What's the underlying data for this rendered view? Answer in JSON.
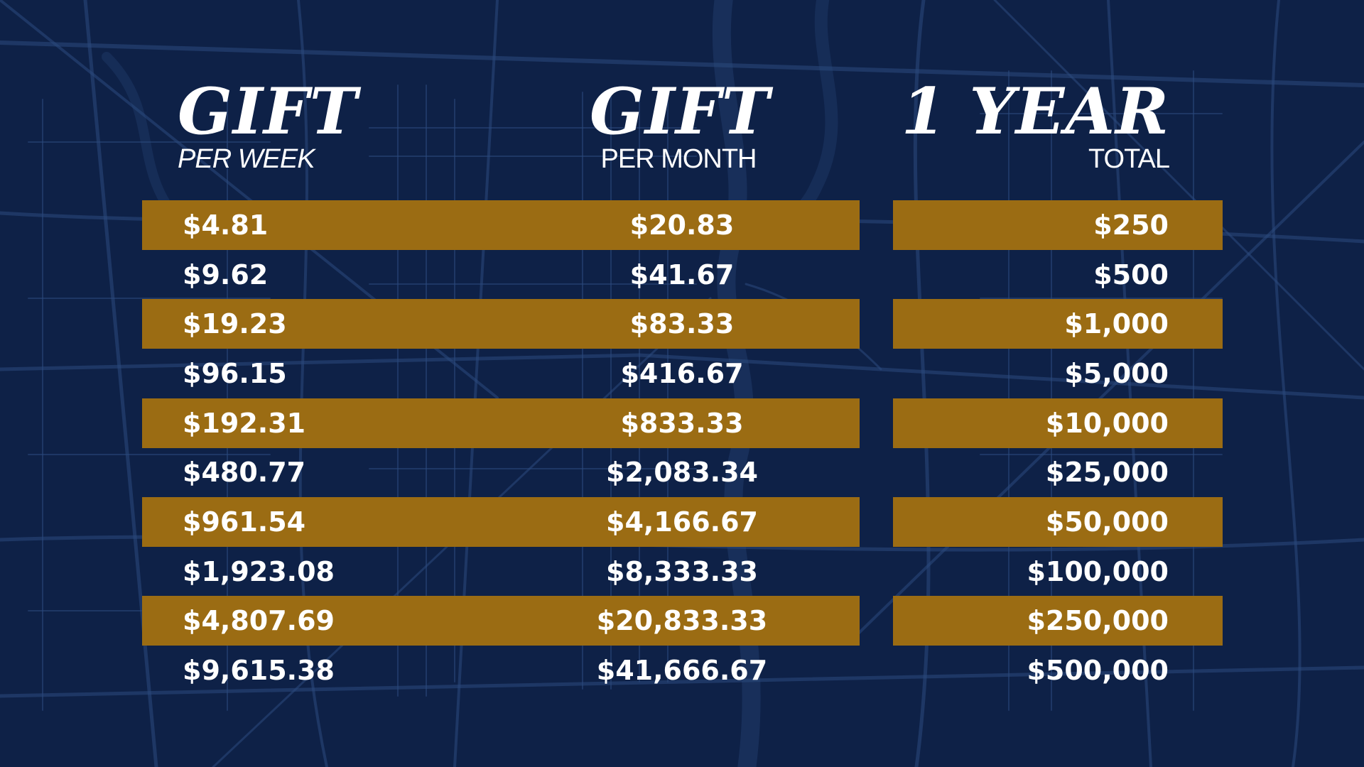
{
  "headers": {
    "week": {
      "title": "GIFT",
      "subtitle": "PER WEEK"
    },
    "month": {
      "title": "GIFT",
      "subtitle": "PER MONTH"
    },
    "year": {
      "title": "1 YEAR",
      "subtitle": "TOTAL"
    }
  },
  "colors": {
    "background": "#0e2147",
    "map_lines": "#2b4a7e",
    "band": "#9b6c13",
    "text": "#ffffff"
  },
  "rows": [
    {
      "week": "$4.81",
      "month": "$20.83",
      "year": "$250"
    },
    {
      "week": "$9.62",
      "month": "$41.67",
      "year": "$500"
    },
    {
      "week": "$19.23",
      "month": "$83.33",
      "year": "$1,000"
    },
    {
      "week": "$96.15",
      "month": "$416.67",
      "year": "$5,000"
    },
    {
      "week": "$192.31",
      "month": "$833.33",
      "year": "$10,000"
    },
    {
      "week": "$480.77",
      "month": "$2,083.34",
      "year": "$25,000"
    },
    {
      "week": "$961.54",
      "month": "$4,166.67",
      "year": "$50,000"
    },
    {
      "week": "$1,923.08",
      "month": "$8,333.33",
      "year": "$100,000"
    },
    {
      "week": "$4,807.69",
      "month": "$20,833.33",
      "year": "$250,000"
    },
    {
      "week": "$9,615.38",
      "month": "$41,666.67",
      "year": "$500,000"
    }
  ]
}
